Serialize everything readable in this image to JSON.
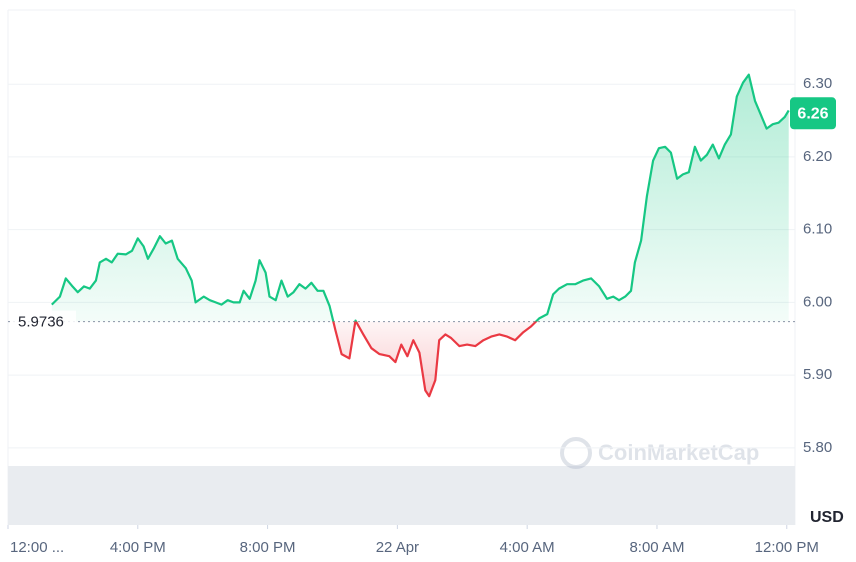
{
  "chart_data": {
    "type": "line",
    "x": [
      1.35,
      1.6,
      1.78,
      1.97,
      2.15,
      2.34,
      2.52,
      2.71,
      2.83,
      3.02,
      3.2,
      3.38,
      3.63,
      3.82,
      4.0,
      4.18,
      4.31,
      4.49,
      4.68,
      4.86,
      5.05,
      5.23,
      5.48,
      5.66,
      5.78,
      6.03,
      6.22,
      6.4,
      6.58,
      6.77,
      6.95,
      7.14,
      7.26,
      7.45,
      7.63,
      7.75,
      7.94,
      8.06,
      8.25,
      8.43,
      8.62,
      8.8,
      8.98,
      9.17,
      9.35,
      9.54,
      9.72,
      9.91,
      10.09,
      10.28,
      10.52,
      10.71,
      10.95,
      11.2,
      11.45,
      11.75,
      11.94,
      12.12,
      12.31,
      12.49,
      12.68,
      12.86,
      12.98,
      13.17,
      13.29,
      13.48,
      13.66,
      13.91,
      14.15,
      14.4,
      14.65,
      14.89,
      15.14,
      15.38,
      15.63,
      15.88,
      16.12,
      16.37,
      16.62,
      16.8,
      16.98,
      17.23,
      17.48,
      17.72,
      17.97,
      18.22,
      18.46,
      18.65,
      18.83,
      19.02,
      19.2,
      19.32,
      19.51,
      19.69,
      19.88,
      20.06,
      20.25,
      20.43,
      20.62,
      20.8,
      20.98,
      21.17,
      21.35,
      21.54,
      21.72,
      21.91,
      22.09,
      22.28,
      22.46,
      22.65,
      22.83,
      23.02,
      23.2,
      23.38,
      23.57,
      23.75,
      23.94,
      24.06
    ],
    "series": [
      {
        "up_color": "#16c784",
        "down_color": "#ea3943",
        "values": [
          5.997,
          6.008,
          6.033,
          6.023,
          6.014,
          6.022,
          6.019,
          6.03,
          6.055,
          6.06,
          6.055,
          6.067,
          6.066,
          6.071,
          6.088,
          6.077,
          6.06,
          6.074,
          6.091,
          6.081,
          6.085,
          6.06,
          6.047,
          6.03,
          6.0,
          6.008,
          6.003,
          6.0,
          5.997,
          6.003,
          6.0,
          6.0,
          6.016,
          6.005,
          6.03,
          6.058,
          6.041,
          6.008,
          6.003,
          6.03,
          6.008,
          6.014,
          6.025,
          6.019,
          6.027,
          6.016,
          6.016,
          5.995,
          5.962,
          5.929,
          5.923,
          5.975,
          5.956,
          5.937,
          5.929,
          5.926,
          5.918,
          5.942,
          5.926,
          5.948,
          5.931,
          5.879,
          5.871,
          5.893,
          5.948,
          5.956,
          5.951,
          5.94,
          5.942,
          5.94,
          5.948,
          5.953,
          5.956,
          5.953,
          5.948,
          5.959,
          5.967,
          5.978,
          5.984,
          6.011,
          6.019,
          6.025,
          6.025,
          6.03,
          6.033,
          6.022,
          6.005,
          6.008,
          6.003,
          6.008,
          6.016,
          6.055,
          6.085,
          6.146,
          6.195,
          6.212,
          6.214,
          6.206,
          6.17,
          6.176,
          6.179,
          6.214,
          6.195,
          6.203,
          6.217,
          6.198,
          6.217,
          6.231,
          6.283,
          6.302,
          6.313,
          6.277,
          6.258,
          6.239,
          6.245,
          6.247,
          6.255,
          6.264
        ]
      }
    ],
    "reference_price": 5.9736,
    "current_price": 6.26,
    "xlim": [
      0,
      24.1
    ],
    "ylim": [
      5.694,
      6.402
    ],
    "xticks": [
      {
        "value": 0,
        "label": "12:00 ..."
      },
      {
        "value": 4,
        "label": "4:00 PM"
      },
      {
        "value": 8,
        "label": "8:00 PM"
      },
      {
        "value": 12,
        "label": "22 Apr"
      },
      {
        "value": 16,
        "label": "4:00 AM"
      },
      {
        "value": 20,
        "label": "8:00 AM"
      },
      {
        "value": 24,
        "label": "12:00 PM"
      }
    ],
    "yticks": [
      {
        "value": 5.8,
        "label": "5.80"
      },
      {
        "value": 5.9,
        "label": "5.90"
      },
      {
        "value": 6.0,
        "label": "6.00"
      },
      {
        "value": 6.1,
        "label": "6.10"
      },
      {
        "value": 6.2,
        "label": "6.20"
      },
      {
        "value": 6.3,
        "label": "6.30"
      }
    ],
    "y_axis_label": "USD",
    "watermark": "CoinMarketCap",
    "grid": true
  }
}
